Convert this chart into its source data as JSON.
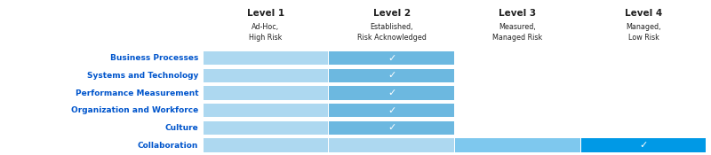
{
  "rows": [
    "Business Processes",
    "Systems and Technology",
    "Performance Measurement",
    "Organization and Workforce",
    "Culture",
    "Collaboration"
  ],
  "levels": [
    "Level 1",
    "Level 2",
    "Level 3",
    "Level 4"
  ],
  "level_subtitles": [
    "Ad-Hoc,\nHigh Risk",
    "Established,\nRisk Acknowledged",
    "Measured,\nManaged Risk",
    "Managed,\nLow Risk"
  ],
  "checkmark_level": [
    2,
    2,
    2,
    2,
    2,
    4
  ],
  "bar_filled_up_to": [
    2,
    2,
    2,
    2,
    2,
    4
  ],
  "light_blue": "#add8f0",
  "medium_blue": "#6cb8e0",
  "dark_blue": "#0099e6",
  "collab_mid_blue": "#7ec8ee",
  "row_label_color": "#0055cc",
  "header_color": "#222222",
  "background_color": "#ffffff",
  "checkmark_char": "✓",
  "fig_width": 8.0,
  "fig_height": 1.75,
  "dpi": 100
}
